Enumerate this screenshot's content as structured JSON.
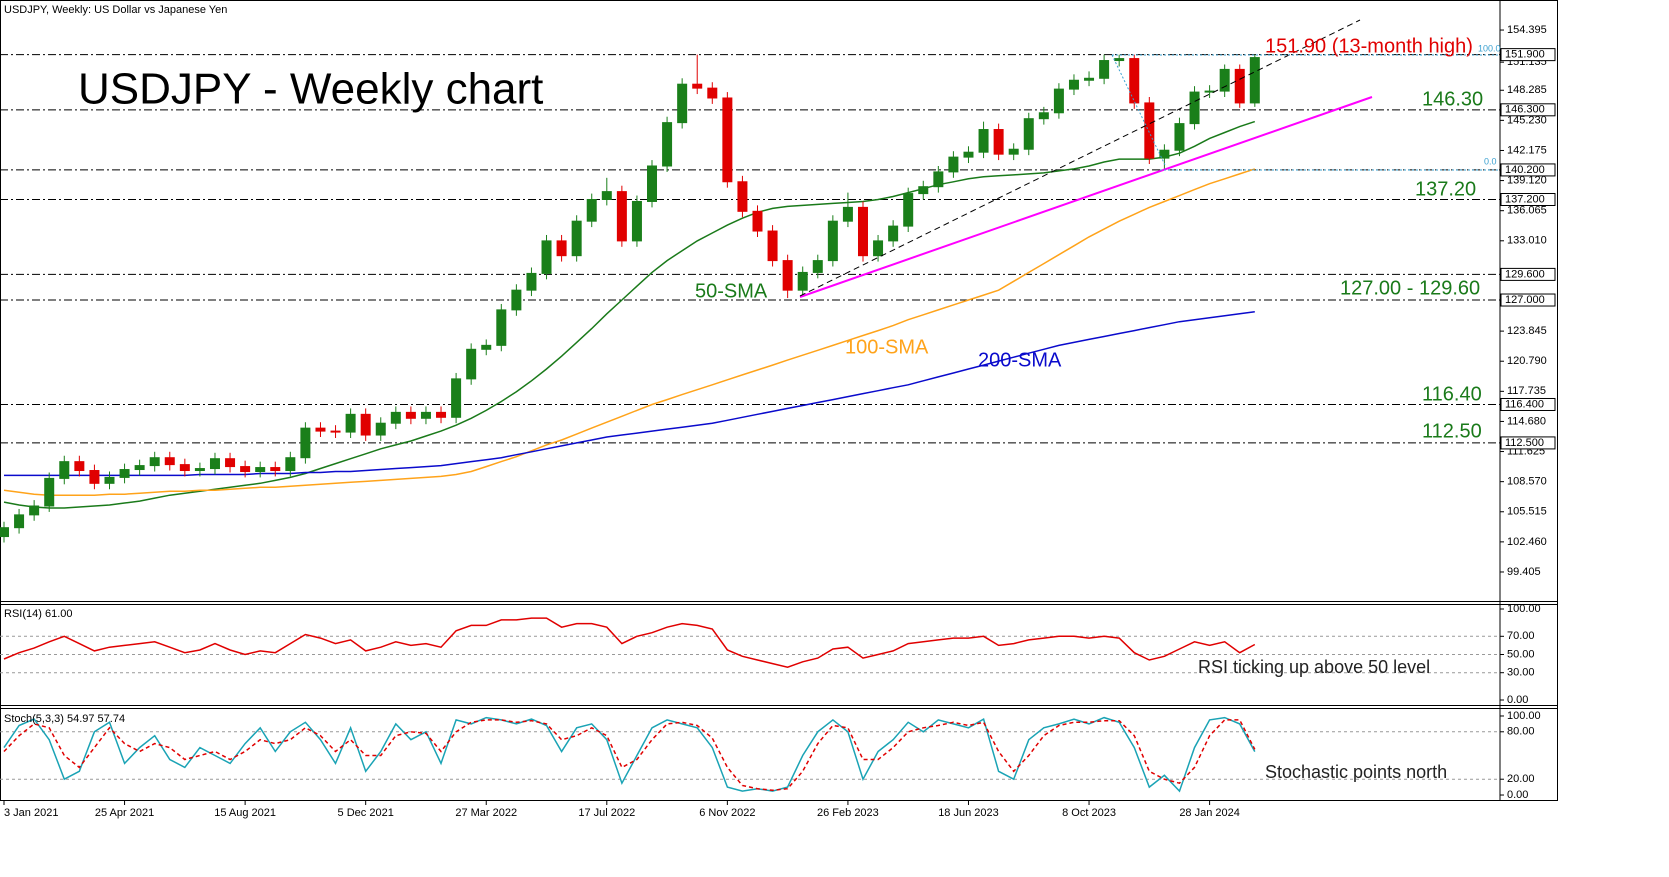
{
  "header": "USDJPY, Weekly:  US Dollar vs Japanese Yen",
  "chart_data": [
    {
      "type": "candlestick",
      "title": "USDJPY - Weekly chart",
      "categories": [
        "3 Jan 2021",
        null,
        null,
        null,
        null,
        null,
        null,
        null,
        "25 Apr 2021",
        null,
        null,
        null,
        null,
        null,
        null,
        null,
        "15 Aug 2021",
        null,
        null,
        null,
        null,
        null,
        null,
        null,
        "5 Dec 2021",
        null,
        null,
        null,
        null,
        null,
        null,
        null,
        "27 Mar 2022",
        null,
        null,
        null,
        null,
        null,
        null,
        null,
        "17 Jul 2022",
        null,
        null,
        null,
        null,
        null,
        null,
        null,
        "6 Nov 2022",
        null,
        null,
        null,
        null,
        null,
        null,
        null,
        "26 Feb 2023",
        null,
        null,
        null,
        null,
        null,
        null,
        null,
        "18 Jun 2023",
        null,
        null,
        null,
        null,
        null,
        null,
        null,
        "8 Oct 2023",
        null,
        null,
        null,
        null,
        null,
        null,
        null,
        "28 Jan 2024",
        null,
        null,
        null
      ],
      "open": [
        103.0,
        103.9,
        105.2,
        106.1,
        108.9,
        110.6,
        109.7,
        108.4,
        109.0,
        109.8,
        110.2,
        111.0,
        110.3,
        109.7,
        109.9,
        110.9,
        110.1,
        109.6,
        110.0,
        109.7,
        111.0,
        114.0,
        113.7,
        113.6,
        115.4,
        113.3,
        114.5,
        115.6,
        115.0,
        115.6,
        115.1,
        119.0,
        122.0,
        122.4,
        126.0,
        128.0,
        129.7,
        133.0,
        131.5,
        135.0,
        137.2,
        138.0,
        133.0,
        137.0,
        140.6,
        145.0,
        148.9,
        148.5,
        147.5,
        139.0,
        136.0,
        134.0,
        131.0,
        128.0,
        129.8,
        131.0,
        135.0,
        136.4,
        131.5,
        133.0,
        134.5,
        137.8,
        138.5,
        140.0,
        141.5,
        142.0,
        144.3,
        141.8,
        142.3,
        145.4,
        146.0,
        148.4,
        149.3,
        149.5,
        151.3,
        151.5,
        147.0,
        141.4,
        142.2,
        144.9,
        148.1,
        148.2,
        150.4,
        147.0
      ],
      "high": [
        104.5,
        105.8,
        106.7,
        109.5,
        111.2,
        111.2,
        110.3,
        109.6,
        110.4,
        110.8,
        111.6,
        111.6,
        110.9,
        110.5,
        111.5,
        111.5,
        110.7,
        110.6,
        110.6,
        111.6,
        114.6,
        114.6,
        114.3,
        116.0,
        116.0,
        115.1,
        116.2,
        116.2,
        116.2,
        116.2,
        119.6,
        122.6,
        123.0,
        126.6,
        128.6,
        130.3,
        133.6,
        133.6,
        135.6,
        137.8,
        139.4,
        138.6,
        137.6,
        141.2,
        145.6,
        149.5,
        151.9,
        149.1,
        148.1,
        139.6,
        136.6,
        134.6,
        131.6,
        130.4,
        131.6,
        135.6,
        137.9,
        137.0,
        133.6,
        135.1,
        138.4,
        139.1,
        140.6,
        142.1,
        142.6,
        145.1,
        144.9,
        142.9,
        146.0,
        146.6,
        149.0,
        149.9,
        150.2,
        151.9,
        151.9,
        151.9,
        147.6,
        142.8,
        145.5,
        148.7,
        148.8,
        150.9,
        150.9,
        151.9
      ],
      "low": [
        102.4,
        103.3,
        104.6,
        105.5,
        108.3,
        109.1,
        107.8,
        107.8,
        108.4,
        109.2,
        109.6,
        109.7,
        109.1,
        109.1,
        109.3,
        109.5,
        109.0,
        109.0,
        109.1,
        109.1,
        110.4,
        113.1,
        113.0,
        113.0,
        112.7,
        112.7,
        113.9,
        114.4,
        114.4,
        114.5,
        114.5,
        118.4,
        121.4,
        121.8,
        125.4,
        127.4,
        129.1,
        130.9,
        130.9,
        134.4,
        136.6,
        132.4,
        132.4,
        136.4,
        140.0,
        144.4,
        147.9,
        146.9,
        138.4,
        135.4,
        133.4,
        130.4,
        127.2,
        127.4,
        129.2,
        130.4,
        134.4,
        130.9,
        130.9,
        132.4,
        133.9,
        137.2,
        137.9,
        139.4,
        140.9,
        141.4,
        141.2,
        141.2,
        141.7,
        144.8,
        145.4,
        147.8,
        148.7,
        148.9,
        150.7,
        146.4,
        140.8,
        140.3,
        141.6,
        144.3,
        147.5,
        147.6,
        146.5,
        146.6
      ],
      "close": [
        103.9,
        105.2,
        106.1,
        108.9,
        110.6,
        109.7,
        108.4,
        109.0,
        109.8,
        110.2,
        111.0,
        110.3,
        109.7,
        109.9,
        110.9,
        110.1,
        109.6,
        110.0,
        109.7,
        111.0,
        114.0,
        113.7,
        113.6,
        115.4,
        113.3,
        114.5,
        115.6,
        115.0,
        115.6,
        115.1,
        119.0,
        122.0,
        122.4,
        126.0,
        128.0,
        129.7,
        133.0,
        131.5,
        135.0,
        137.2,
        138.0,
        133.0,
        137.0,
        140.6,
        145.0,
        148.9,
        148.5,
        147.5,
        139.0,
        136.0,
        134.0,
        131.0,
        128.0,
        129.8,
        131.0,
        135.0,
        136.4,
        131.5,
        133.0,
        134.5,
        137.8,
        138.5,
        140.0,
        141.5,
        142.0,
        144.3,
        141.8,
        142.3,
        145.4,
        146.0,
        148.4,
        149.3,
        149.5,
        151.3,
        151.5,
        147.0,
        141.4,
        142.2,
        144.9,
        148.1,
        148.2,
        150.4,
        147.0,
        151.6
      ],
      "up_color": "#1a7f1a",
      "down_color": "#e00000",
      "series": [
        {
          "name": "50-SMA",
          "color": "#1a7a1a",
          "values": [
            106.5,
            106.2,
            106.0,
            105.9,
            105.9,
            106.0,
            106.1,
            106.2,
            106.4,
            106.6,
            106.9,
            107.2,
            107.4,
            107.6,
            107.8,
            108.0,
            108.2,
            108.4,
            108.7,
            109.0,
            109.4,
            109.9,
            110.4,
            110.9,
            111.4,
            111.9,
            112.3,
            112.7,
            113.2,
            113.7,
            114.3,
            115.0,
            115.8,
            116.7,
            117.7,
            118.8,
            120.0,
            121.3,
            122.7,
            124.1,
            125.6,
            127.0,
            128.4,
            129.8,
            131.0,
            132.0,
            133.0,
            133.8,
            134.6,
            135.3,
            135.9,
            136.3,
            136.5,
            136.6,
            136.7,
            136.8,
            136.9,
            137.0,
            137.2,
            137.5,
            137.9,
            138.3,
            138.7,
            139.0,
            139.3,
            139.5,
            139.6,
            139.7,
            139.8,
            139.9,
            140.1,
            140.3,
            140.6,
            141.0,
            141.3,
            141.3,
            141.3,
            141.5,
            141.9,
            142.6,
            143.4,
            144.0,
            144.6,
            145.1
          ]
        },
        {
          "name": "100-SMA",
          "color": "#ffa31a",
          "values": [
            107.7,
            107.5,
            107.3,
            107.2,
            107.2,
            107.2,
            107.2,
            107.3,
            107.3,
            107.4,
            107.5,
            107.6,
            107.6,
            107.7,
            107.7,
            107.8,
            107.9,
            108.0,
            108.0,
            108.1,
            108.2,
            108.3,
            108.4,
            108.5,
            108.6,
            108.7,
            108.8,
            108.9,
            109.0,
            109.1,
            109.3,
            109.6,
            110.1,
            110.6,
            111.1,
            111.7,
            112.3,
            112.8,
            113.4,
            114.0,
            114.6,
            115.2,
            115.8,
            116.4,
            116.9,
            117.4,
            117.9,
            118.4,
            118.9,
            119.4,
            119.9,
            120.4,
            120.9,
            121.4,
            121.9,
            122.4,
            122.9,
            123.4,
            123.9,
            124.4,
            125.0,
            125.5,
            126.0,
            126.5,
            127.0,
            127.5,
            128.0,
            128.9,
            129.8,
            130.7,
            131.6,
            132.5,
            133.4,
            134.2,
            135.0,
            135.7,
            136.4,
            137.0,
            137.6,
            138.2,
            138.8,
            139.3,
            139.8,
            140.3
          ]
        },
        {
          "name": "200-SMA",
          "color": "#0a0acc",
          "values": [
            109.2,
            109.2,
            109.2,
            109.2,
            109.2,
            109.2,
            109.2,
            109.2,
            109.2,
            109.2,
            109.2,
            109.2,
            109.2,
            109.3,
            109.3,
            109.3,
            109.3,
            109.4,
            109.4,
            109.4,
            109.5,
            109.5,
            109.6,
            109.6,
            109.7,
            109.8,
            109.9,
            110.0,
            110.1,
            110.2,
            110.4,
            110.6,
            110.8,
            111.0,
            111.3,
            111.6,
            111.9,
            112.2,
            112.5,
            112.8,
            113.1,
            113.3,
            113.5,
            113.7,
            113.9,
            114.1,
            114.3,
            114.5,
            114.8,
            115.1,
            115.4,
            115.7,
            116.0,
            116.3,
            116.6,
            116.9,
            117.2,
            117.5,
            117.8,
            118.1,
            118.4,
            118.8,
            119.2,
            119.6,
            120.0,
            120.4,
            120.8,
            121.2,
            121.6,
            122.0,
            122.4,
            122.7,
            123.0,
            123.3,
            123.6,
            123.9,
            124.2,
            124.5,
            124.8,
            125.0,
            125.2,
            125.4,
            125.6,
            125.8
          ]
        }
      ],
      "ylim": [
        96.46,
        157.24
      ],
      "yticks": [
        154.395,
        151.135,
        148.285,
        {
          "value": 145.23,
          "label": "145.230"
        },
        142.175,
        {
          "value": 139.12,
          "label": "139.120"
        },
        136.065,
        {
          "value": 133.01,
          "label": "133.010"
        },
        123.845,
        {
          "value": 120.79,
          "label": "120.790"
        },
        117.735,
        {
          "value": 114.68,
          "label": "114.680"
        },
        111.625,
        {
          "value": 108.57,
          "label": "108.570"
        },
        105.515,
        {
          "value": 102.46,
          "label": "102.460"
        },
        99.405
      ],
      "levels": [
        {
          "value": 151.9,
          "label": "151.900"
        },
        {
          "value": 146.3,
          "label": "146.300"
        },
        {
          "value": 140.2,
          "label": "140.200"
        },
        {
          "value": 137.2,
          "label": "137.200"
        },
        {
          "value": 129.6,
          "label": "129.600"
        },
        {
          "value": 127.0,
          "label": "127.000"
        },
        {
          "value": 116.4,
          "label": "116.400"
        },
        {
          "value": 112.5,
          "label": "112.500"
        }
      ],
      "fib_labels": [
        "100.0",
        "0.0"
      ],
      "annotations": [
        "151.90 (13-month high)",
        "146.30",
        "137.20",
        "127.00 - 129.60",
        "116.40",
        "112.50"
      ]
    },
    {
      "type": "line",
      "title": "RSI(14) 61.00",
      "series": [
        {
          "color": "#e00000",
          "values": [
            45,
            52,
            57,
            64,
            70,
            62,
            54,
            58,
            60,
            62,
            64,
            58,
            52,
            55,
            62,
            55,
            50,
            54,
            52,
            62,
            72,
            68,
            62,
            66,
            54,
            58,
            64,
            60,
            62,
            58,
            76,
            82,
            82,
            88,
            88,
            90,
            90,
            80,
            84,
            84,
            80,
            62,
            70,
            74,
            80,
            84,
            82,
            78,
            55,
            48,
            44,
            40,
            36,
            42,
            46,
            56,
            58,
            46,
            50,
            54,
            62,
            64,
            66,
            68,
            68,
            70,
            60,
            62,
            66,
            68,
            70,
            70,
            68,
            70,
            68,
            52,
            44,
            48,
            56,
            64,
            60,
            64,
            52,
            61
          ]
        }
      ],
      "ylim": [
        -5.5,
        106.6
      ],
      "yticks": [
        {
          "value": 100,
          "label": "100.00"
        },
        {
          "value": 70,
          "label": "70.00"
        },
        {
          "value": 50,
          "label": "50.00"
        },
        {
          "value": 30,
          "label": "30.00"
        },
        {
          "value": 0,
          "label": "0.00"
        }
      ],
      "annotations": [
        "RSI ticking up above 50 level"
      ]
    },
    {
      "type": "line",
      "title": "Stoch(5,3,3) 54.97 57.74",
      "series": [
        {
          "color": "#1aa3b5",
          "dashed": false,
          "values": [
            60,
            88,
            96,
            70,
            20,
            30,
            80,
            92,
            40,
            60,
            75,
            45,
            35,
            60,
            50,
            40,
            65,
            85,
            55,
            80,
            92,
            70,
            40,
            85,
            30,
            55,
            90,
            70,
            80,
            40,
            95,
            90,
            98,
            95,
            90,
            96,
            88,
            55,
            85,
            90,
            70,
            15,
            50,
            85,
            95,
            90,
            85,
            60,
            10,
            5,
            8,
            5,
            10,
            50,
            80,
            95,
            80,
            20,
            55,
            70,
            92,
            80,
            95,
            90,
            85,
            96,
            30,
            20,
            70,
            85,
            90,
            96,
            90,
            98,
            92,
            60,
            10,
            25,
            5,
            60,
            95,
            98,
            90,
            54.97
          ]
        },
        {
          "color": "#e00000",
          "dashed": true,
          "values": [
            55,
            75,
            90,
            85,
            50,
            35,
            60,
            85,
            65,
            55,
            65,
            60,
            45,
            50,
            55,
            45,
            55,
            70,
            65,
            70,
            85,
            75,
            55,
            70,
            50,
            50,
            75,
            80,
            78,
            55,
            80,
            92,
            95,
            95,
            92,
            94,
            90,
            70,
            75,
            85,
            75,
            35,
            45,
            70,
            90,
            92,
            88,
            72,
            35,
            12,
            8,
            6,
            8,
            30,
            65,
            88,
            85,
            45,
            45,
            60,
            80,
            85,
            88,
            92,
            88,
            92,
            55,
            30,
            50,
            75,
            88,
            92,
            92,
            94,
            94,
            75,
            30,
            20,
            15,
            35,
            75,
            95,
            95,
            57.74
          ]
        }
      ],
      "ylim": [
        -6.3,
        110.1
      ],
      "yticks": [
        {
          "value": 100,
          "label": "100.00"
        },
        {
          "value": 80,
          "label": "80.00"
        },
        {
          "value": 20,
          "label": "20.00"
        },
        {
          "value": 0,
          "label": "0.00"
        }
      ],
      "annotations": [
        "Stochastic points north"
      ]
    }
  ]
}
